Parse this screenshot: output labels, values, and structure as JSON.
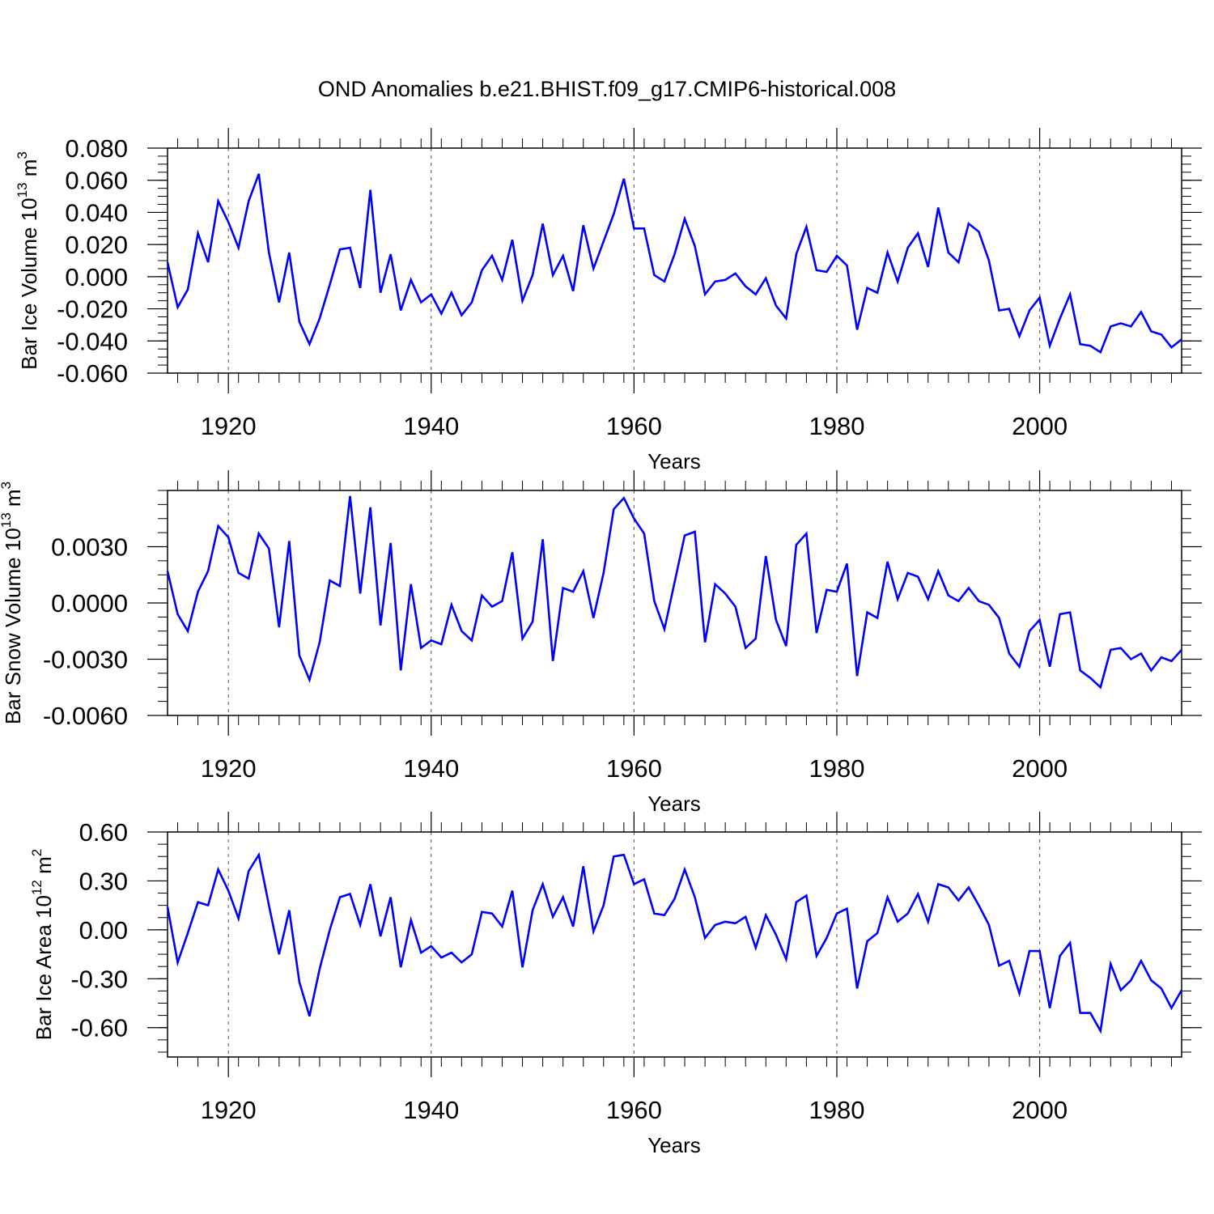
{
  "title": "OND Anomalies b.e21.BHIST.f09_g17.CMIP6-historical.008",
  "colors": {
    "line": "#0000ff",
    "frame": "#000000",
    "grid": "#555555"
  },
  "chart_data": [
    {
      "type": "line",
      "ylabel": {
        "text": "Bar Ice Volume 10",
        "sup": "13",
        "unit": "m",
        "unit_sup": "3"
      },
      "xlabel": "Years",
      "xlim": [
        1914,
        2014
      ],
      "ylim": [
        -0.06,
        0.08
      ],
      "yticks": [
        -0.06,
        -0.04,
        -0.02,
        0.0,
        0.02,
        0.04,
        0.06,
        0.08
      ],
      "ytick_labels": [
        "-0.060",
        "-0.040",
        "-0.020",
        "0.000",
        "0.020",
        "0.040",
        "0.060",
        "0.080"
      ],
      "xticks": [
        1920,
        1940,
        1960,
        1980,
        2000
      ],
      "xtick_labels": [
        "1920",
        "1940",
        "1960",
        "1980",
        "2000"
      ],
      "grid": "vertical dashed at major x ticks",
      "x": [
        1914,
        1915,
        1916,
        1917,
        1918,
        1919,
        1920,
        1921,
        1922,
        1923,
        1924,
        1925,
        1926,
        1927,
        1928,
        1929,
        1930,
        1931,
        1932,
        1933,
        1934,
        1935,
        1936,
        1937,
        1938,
        1939,
        1940,
        1941,
        1942,
        1943,
        1944,
        1945,
        1946,
        1947,
        1948,
        1949,
        1950,
        1951,
        1952,
        1953,
        1954,
        1955,
        1956,
        1957,
        1958,
        1959,
        1960,
        1961,
        1962,
        1963,
        1964,
        1965,
        1966,
        1967,
        1968,
        1969,
        1970,
        1971,
        1972,
        1973,
        1974,
        1975,
        1976,
        1977,
        1978,
        1979,
        1980,
        1981,
        1982,
        1983,
        1984,
        1985,
        1986,
        1987,
        1988,
        1989,
        1990,
        1991,
        1992,
        1993,
        1994,
        1995,
        1996,
        1997,
        1998,
        1999,
        2000,
        2001,
        2002,
        2003,
        2004,
        2005,
        2006,
        2007,
        2008,
        2009,
        2010,
        2011,
        2012,
        2013,
        2014
      ],
      "values": [
        0.009,
        -0.019,
        -0.008,
        0.027,
        0.009,
        0.047,
        0.034,
        0.018,
        0.047,
        0.064,
        0.015,
        -0.016,
        0.015,
        -0.028,
        -0.042,
        -0.026,
        -0.005,
        0.017,
        0.018,
        -0.007,
        0.054,
        -0.01,
        0.014,
        -0.021,
        -0.002,
        -0.016,
        -0.011,
        -0.023,
        -0.01,
        -0.024,
        -0.016,
        0.004,
        0.013,
        -0.002,
        0.023,
        -0.015,
        0.001,
        0.033,
        0.001,
        0.013,
        -0.009,
        0.032,
        0.005,
        0.022,
        0.039,
        0.061,
        0.03,
        0.03,
        0.001,
        -0.003,
        0.014,
        0.036,
        0.019,
        -0.011,
        -0.003,
        -0.002,
        0.002,
        -0.006,
        -0.011,
        -0.001,
        -0.018,
        -0.026,
        0.014,
        0.031,
        0.004,
        0.003,
        0.013,
        0.007,
        -0.033,
        -0.007,
        -0.01,
        0.015,
        -0.003,
        0.018,
        0.027,
        0.006,
        0.043,
        0.015,
        0.009,
        0.033,
        0.028,
        0.01,
        -0.021,
        -0.02,
        -0.037,
        -0.021,
        -0.013,
        -0.043,
        -0.026,
        -0.011,
        -0.042,
        -0.043,
        -0.047,
        -0.031,
        -0.029,
        -0.031,
        -0.022,
        -0.034,
        -0.036,
        -0.044,
        -0.039
      ]
    },
    {
      "type": "line",
      "ylabel": {
        "text": "Bar Snow Volume 10",
        "sup": "13",
        "unit": "m",
        "unit_sup": "3"
      },
      "xlabel": "Years",
      "xlim": [
        1914,
        2014
      ],
      "ylim": [
        -0.006,
        0.006
      ],
      "yticks": [
        -0.006,
        -0.003,
        0.0,
        0.003
      ],
      "ytick_labels": [
        "-0.0060",
        "-0.0030",
        "0.0000",
        "0.0030"
      ],
      "xticks": [
        1920,
        1940,
        1960,
        1980,
        2000
      ],
      "xtick_labels": [
        "1920",
        "1940",
        "1960",
        "1980",
        "2000"
      ],
      "grid": "vertical dashed at major x ticks",
      "x": [
        1914,
        1915,
        1916,
        1917,
        1918,
        1919,
        1920,
        1921,
        1922,
        1923,
        1924,
        1925,
        1926,
        1927,
        1928,
        1929,
        1930,
        1931,
        1932,
        1933,
        1934,
        1935,
        1936,
        1937,
        1938,
        1939,
        1940,
        1941,
        1942,
        1943,
        1944,
        1945,
        1946,
        1947,
        1948,
        1949,
        1950,
        1951,
        1952,
        1953,
        1954,
        1955,
        1956,
        1957,
        1958,
        1959,
        1960,
        1961,
        1962,
        1963,
        1964,
        1965,
        1966,
        1967,
        1968,
        1969,
        1970,
        1971,
        1972,
        1973,
        1974,
        1975,
        1976,
        1977,
        1978,
        1979,
        1980,
        1981,
        1982,
        1983,
        1984,
        1985,
        1986,
        1987,
        1988,
        1989,
        1990,
        1991,
        1992,
        1993,
        1994,
        1995,
        1996,
        1997,
        1998,
        1999,
        2000,
        2001,
        2002,
        2003,
        2004,
        2005,
        2006,
        2007,
        2008,
        2009,
        2010,
        2011,
        2012,
        2013,
        2014
      ],
      "values": [
        0.0017,
        -0.0006,
        -0.0015,
        0.0006,
        0.0017,
        0.0041,
        0.0035,
        0.0016,
        0.0013,
        0.0037,
        0.0029,
        -0.0013,
        0.0033,
        -0.0028,
        -0.0041,
        -0.0021,
        0.0012,
        0.0009,
        0.0057,
        0.0005,
        0.0051,
        -0.0012,
        0.0032,
        -0.0036,
        0.001,
        -0.0024,
        -0.002,
        -0.0022,
        -0.0001,
        -0.0015,
        -0.002,
        0.0004,
        -0.0002,
        0.0001,
        0.0027,
        -0.0019,
        -0.001,
        0.0034,
        -0.0031,
        0.0008,
        0.0006,
        0.0017,
        -0.0008,
        0.0016,
        0.005,
        0.0056,
        0.0045,
        0.0037,
        0.0001,
        -0.0014,
        0.0011,
        0.0036,
        0.0038,
        -0.0021,
        0.001,
        0.0005,
        -0.0002,
        -0.0024,
        -0.0019,
        0.0025,
        -0.0009,
        -0.0023,
        0.0031,
        0.0037,
        -0.0016,
        0.0007,
        0.0006,
        0.0021,
        -0.0039,
        -0.0005,
        -0.0008,
        0.0022,
        0.0002,
        0.0016,
        0.0014,
        0.0002,
        0.0017,
        0.0004,
        0.0001,
        0.0008,
        0.0001,
        -0.0001,
        -0.0008,
        -0.0027,
        -0.0034,
        -0.0015,
        -0.0009,
        -0.0034,
        -0.0006,
        -0.0005,
        -0.0036,
        -0.004,
        -0.0045,
        -0.0025,
        -0.0024,
        -0.003,
        -0.0027,
        -0.0036,
        -0.0029,
        -0.0031,
        -0.0025
      ]
    },
    {
      "type": "line",
      "ylabel": {
        "text": "Bar Ice Area 10",
        "sup": "12",
        "unit": "m",
        "unit_sup": "2"
      },
      "xlabel": "Years",
      "xlim": [
        1914,
        2014
      ],
      "ylim": [
        -0.78,
        0.6
      ],
      "yticks": [
        -0.6,
        -0.3,
        0.0,
        0.3,
        0.6
      ],
      "ytick_labels": [
        "-0.60",
        "-0.30",
        "0.00",
        "0.30",
        "0.60"
      ],
      "xticks": [
        1920,
        1940,
        1960,
        1980,
        2000
      ],
      "xtick_labels": [
        "1920",
        "1940",
        "1960",
        "1980",
        "2000"
      ],
      "grid": "vertical dashed at major x ticks",
      "x": [
        1914,
        1915,
        1916,
        1917,
        1918,
        1919,
        1920,
        1921,
        1922,
        1923,
        1924,
        1925,
        1926,
        1927,
        1928,
        1929,
        1930,
        1931,
        1932,
        1933,
        1934,
        1935,
        1936,
        1937,
        1938,
        1939,
        1940,
        1941,
        1942,
        1943,
        1944,
        1945,
        1946,
        1947,
        1948,
        1949,
        1950,
        1951,
        1952,
        1953,
        1954,
        1955,
        1956,
        1957,
        1958,
        1959,
        1960,
        1961,
        1962,
        1963,
        1964,
        1965,
        1966,
        1967,
        1968,
        1969,
        1970,
        1971,
        1972,
        1973,
        1974,
        1975,
        1976,
        1977,
        1978,
        1979,
        1980,
        1981,
        1982,
        1983,
        1984,
        1985,
        1986,
        1987,
        1988,
        1989,
        1990,
        1991,
        1992,
        1993,
        1994,
        1995,
        1996,
        1997,
        1998,
        1999,
        2000,
        2001,
        2002,
        2003,
        2004,
        2005,
        2006,
        2007,
        2008,
        2009,
        2010,
        2011,
        2012,
        2013,
        2014
      ],
      "values": [
        0.14,
        -0.2,
        -0.02,
        0.17,
        0.15,
        0.37,
        0.24,
        0.07,
        0.36,
        0.46,
        0.15,
        -0.15,
        0.12,
        -0.32,
        -0.53,
        -0.24,
        0.0,
        0.2,
        0.22,
        0.03,
        0.28,
        -0.04,
        0.2,
        -0.23,
        0.06,
        -0.14,
        -0.1,
        -0.17,
        -0.14,
        -0.2,
        -0.15,
        0.11,
        0.1,
        0.02,
        0.24,
        -0.23,
        0.12,
        0.28,
        0.08,
        0.2,
        0.02,
        0.39,
        -0.01,
        0.15,
        0.45,
        0.46,
        0.28,
        0.31,
        0.1,
        0.09,
        0.19,
        0.37,
        0.2,
        -0.05,
        0.03,
        0.05,
        0.04,
        0.08,
        -0.11,
        0.09,
        -0.03,
        -0.18,
        0.17,
        0.21,
        -0.16,
        -0.05,
        0.1,
        0.13,
        -0.36,
        -0.07,
        -0.02,
        0.2,
        0.05,
        0.1,
        0.22,
        0.05,
        0.28,
        0.26,
        0.18,
        0.26,
        0.15,
        0.03,
        -0.22,
        -0.19,
        -0.39,
        -0.13,
        -0.13,
        -0.48,
        -0.16,
        -0.08,
        -0.51,
        -0.51,
        -0.62,
        -0.21,
        -0.37,
        -0.31,
        -0.19,
        -0.31,
        -0.36,
        -0.48,
        -0.37
      ]
    }
  ]
}
